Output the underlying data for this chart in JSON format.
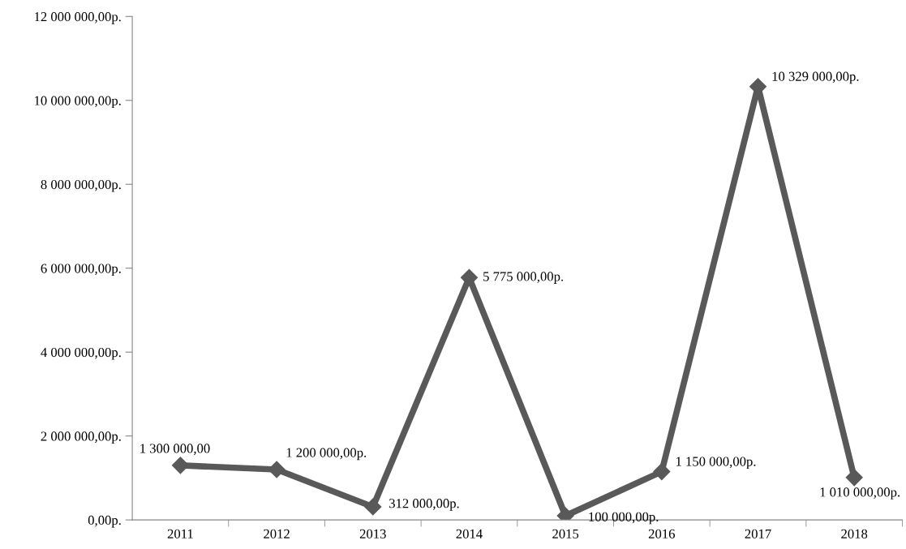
{
  "chart_data": {
    "type": "line",
    "categories": [
      "2011",
      "2012",
      "2013",
      "2014",
      "2015",
      "2016",
      "2017",
      "2018"
    ],
    "series": [
      {
        "color": "#595959",
        "values": [
          1300000,
          1200000,
          312000,
          5775000,
          100000,
          1150000,
          10329000,
          1010000
        ],
        "value_labels": [
          "1 300 000,00",
          "1 200 000,00р.",
          "312 000,00р.",
          "5 775 000,00р.",
          "100 000,00р.",
          "1 150 000,00р.",
          "10 329 000,00р.",
          "1 010 000,00р."
        ]
      }
    ],
    "ylim": [
      0,
      12000000
    ],
    "yticks": [
      {
        "value": 0,
        "label": "0,00р."
      },
      {
        "value": 2000000,
        "label": "2 000 000,00р."
      },
      {
        "value": 4000000,
        "label": "4 000 000,00р."
      },
      {
        "value": 6000000,
        "label": "6 000 000,00р."
      },
      {
        "value": 8000000,
        "label": "8 000 000,00р."
      },
      {
        "value": 10000000,
        "label": "10 000 000,00р."
      },
      {
        "value": 12000000,
        "label": "12 000 000,00р."
      }
    ],
    "marker": "diamond",
    "line_style": "solid",
    "grid": false,
    "legend": false
  }
}
